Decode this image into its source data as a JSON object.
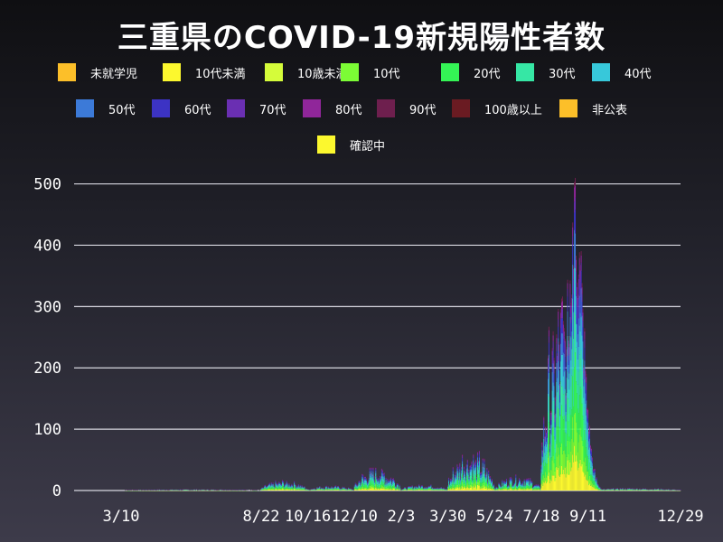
{
  "title": "三重県のCOVID-19新規陽性者数",
  "chart_data": {
    "type": "area",
    "stacked": true,
    "title": "三重県のCOVID-19新規陽性者数",
    "xlabel": "",
    "ylabel": "",
    "ylim": [
      0,
      520
    ],
    "y_ticks": [
      0,
      100,
      200,
      300,
      400,
      500
    ],
    "x_ticks": [
      "3/10",
      "8/22",
      "10/16",
      "12/10",
      "2/3",
      "3/30",
      "5/24",
      "7/18",
      "9/11",
      "12/29"
    ],
    "grid": "horizontal",
    "legend_placement": "top",
    "legend": [
      {
        "label": "未就学児",
        "color": "#fcbf29"
      },
      {
        "label": "10代未満",
        "color": "#fcf82e"
      },
      {
        "label": "10歳未満",
        "color": "#d5fc3a"
      },
      {
        "label": "10代",
        "color": "#7cfc35"
      },
      {
        "label": "20代",
        "color": "#34f455"
      },
      {
        "label": "30代",
        "color": "#36e7a5"
      },
      {
        "label": "40代",
        "color": "#37c8da"
      },
      {
        "label": "50代",
        "color": "#3c7ad8"
      },
      {
        "label": "60代",
        "color": "#3c33c4"
      },
      {
        "label": "70代",
        "color": "#6a2fb2"
      },
      {
        "label": "80代",
        "color": "#90269a"
      },
      {
        "label": "90代",
        "color": "#6e1f4e"
      },
      {
        "label": "100歳以上",
        "color": "#6a1b22"
      },
      {
        "label": "非公表",
        "color": "#fcbf29"
      },
      {
        "label": "確認中",
        "color": "#fcf82e"
      }
    ],
    "series_order": [
      "10代未満",
      "10代",
      "20代",
      "30代",
      "40代",
      "50代",
      "60代",
      "70代",
      "80代",
      "90代"
    ],
    "series_shares": [
      0.12,
      0.12,
      0.18,
      0.15,
      0.14,
      0.11,
      0.07,
      0.05,
      0.04,
      0.02
    ],
    "daily_totals": {
      "description_units": "new cases per day, estimated",
      "segments": [
        {
          "x_start": "2020-03-10",
          "x_end": "2020-08-21",
          "level": 1
        },
        {
          "x_start": "2020-08-22",
          "x_end": "2020-10-15",
          "level": 8
        },
        {
          "x_start": "2020-10-16",
          "x_end": "2020-12-09",
          "level": 4
        },
        {
          "x_start": "2020-12-10",
          "x_end": "2021-02-02",
          "level": 18
        },
        {
          "x_start": "2021-02-03",
          "x_end": "2021-03-29",
          "level": 5
        },
        {
          "x_start": "2021-03-30",
          "x_end": "2021-05-23",
          "level": 30
        },
        {
          "x_start": "2021-05-24",
          "x_end": "2021-07-17",
          "level": 12
        },
        {
          "x_start": "2021-07-18",
          "x_end": "2021-09-10",
          "level": 150
        },
        {
          "x_start": "2021-09-11",
          "x_end": "2021-12-29",
          "level": 2
        }
      ],
      "peak": {
        "date": "2021-08-27",
        "value": 510
      }
    }
  }
}
